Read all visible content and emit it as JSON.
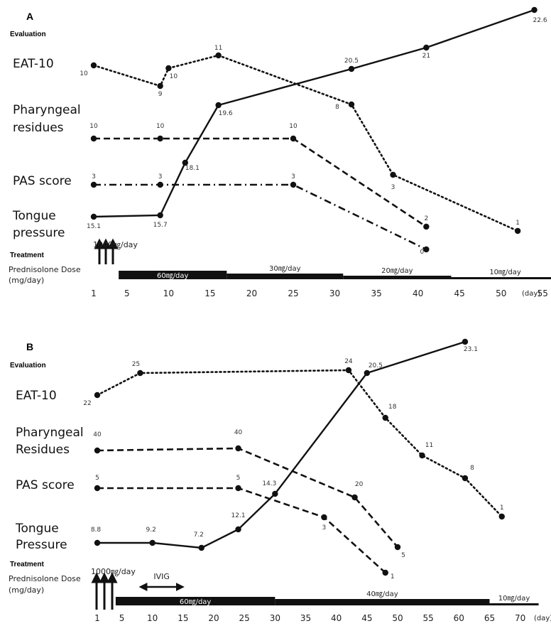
{
  "chart_data": [
    {
      "type": "line",
      "panel": "A",
      "evaluation_heading": "Evaluation",
      "treatment_heading": "Treatment",
      "row_labels": {
        "eat10": [
          "EAT-10"
        ],
        "residues": [
          "Pharyngeal",
          "residues"
        ],
        "pas": [
          "PAS score"
        ],
        "tongue": [
          "Tongue",
          "pressure"
        ]
      },
      "dose_label": [
        "Prednisolone Dose",
        "(mg/day)"
      ],
      "x_axis": {
        "ticks": [
          1,
          5,
          10,
          15,
          20,
          25,
          30,
          35,
          40,
          45,
          50,
          55
        ],
        "unit": "(day)",
        "range": [
          1,
          58
        ]
      },
      "series": [
        {
          "name": "EAT-10",
          "style": "dotted",
          "points": [
            [
              1,
              10
            ],
            [
              9,
              9
            ],
            [
              10,
              10
            ],
            [
              16,
              11
            ],
            [
              32,
              8
            ],
            [
              37,
              3
            ],
            [
              52,
              1
            ]
          ],
          "labels": [
            "10",
            "9",
            "10",
            "11",
            "8",
            "3",
            "1"
          ]
        },
        {
          "name": "Pharyngeal residues",
          "style": "dashed",
          "points": [
            [
              1,
              10
            ],
            [
              9,
              10
            ],
            [
              25,
              10
            ],
            [
              41,
              2
            ]
          ],
          "labels": [
            "10",
            "10",
            "10",
            "2"
          ]
        },
        {
          "name": "PAS score",
          "style": "dashdot",
          "points": [
            [
              1,
              3
            ],
            [
              9,
              3
            ],
            [
              25,
              3
            ],
            [
              41,
              0
            ]
          ],
          "labels": [
            "3",
            "3",
            "3",
            "0"
          ]
        },
        {
          "name": "Tongue pressure",
          "style": "solid",
          "points": [
            [
              1,
              15.1
            ],
            [
              9,
              15.7
            ],
            [
              12,
              18.1
            ],
            [
              16,
              19.6
            ],
            [
              32,
              20.5
            ],
            [
              41,
              21
            ],
            [
              54,
              22.6
            ]
          ],
          "labels": [
            "15.1",
            "15.7",
            "18.1",
            "19.6",
            "20.5",
            "21",
            "22.6"
          ]
        }
      ],
      "treatment": {
        "pulses": {
          "label": "1000㎎/day",
          "days": [
            1,
            2,
            3
          ]
        },
        "doses": [
          {
            "label": "60㎎/day",
            "from": 4,
            "to": 17
          },
          {
            "label": "30㎎/day",
            "from": 17,
            "to": 31
          },
          {
            "label": "20㎎/day",
            "from": 31,
            "to": 44
          },
          {
            "label": "10㎎/day",
            "from": 44,
            "to": 57
          }
        ]
      }
    },
    {
      "type": "line",
      "panel": "B",
      "evaluation_heading": "Evaluation",
      "treatment_heading": "Treatment",
      "row_labels": {
        "eat10": [
          "EAT-10"
        ],
        "residues": [
          "Pharyngeal",
          "Residues"
        ],
        "pas": [
          "PAS score"
        ],
        "tongue": [
          "Tongue",
          "Pressure"
        ]
      },
      "dose_label": [
        "Prednisolone Dose",
        "(mg/day)"
      ],
      "x_axis": {
        "ticks": [
          1,
          5,
          10,
          15,
          20,
          25,
          30,
          35,
          40,
          45,
          50,
          55,
          60,
          65,
          70
        ],
        "unit": "(day)",
        "range": [
          1,
          73
        ]
      },
      "series": [
        {
          "name": "EAT-10",
          "style": "dotted",
          "points": [
            [
              1,
              22
            ],
            [
              8,
              25
            ],
            [
              42,
              24
            ],
            [
              48,
              18
            ],
            [
              54,
              11
            ],
            [
              61,
              8
            ],
            [
              67,
              1
            ]
          ],
          "labels": [
            "22",
            "25",
            "24",
            "18",
            "11",
            "8",
            "1"
          ]
        },
        {
          "name": "Pharyngeal Residues",
          "style": "dashed",
          "points": [
            [
              1,
              40
            ],
            [
              24,
              40
            ],
            [
              43,
              20
            ],
            [
              50,
              5
            ]
          ],
          "labels": [
            "40",
            "40",
            "20",
            "5"
          ]
        },
        {
          "name": "PAS score",
          "style": "dashed",
          "points": [
            [
              1,
              5
            ],
            [
              24,
              5
            ],
            [
              38,
              3
            ],
            [
              48,
              1
            ]
          ],
          "labels": [
            "5",
            "5",
            "3",
            "1"
          ]
        },
        {
          "name": "Tongue Pressure",
          "style": "solid",
          "points": [
            [
              1,
              8.8
            ],
            [
              10,
              9.2
            ],
            [
              18,
              7.2
            ],
            [
              24,
              12.1
            ],
            [
              30,
              14.3
            ],
            [
              45,
              20.5
            ],
            [
              61,
              23.1
            ]
          ],
          "labels": [
            "8.8",
            "9.2",
            "7.2",
            "12.1",
            "14.3",
            "20.5",
            "23.1"
          ]
        }
      ],
      "treatment": {
        "pulses": {
          "label": "1000㎎/day",
          "days": [
            1,
            2,
            3
          ]
        },
        "ivig": {
          "label": "IVIG",
          "from": 8,
          "to": 15
        },
        "doses": [
          {
            "label": "60㎎/day",
            "from": 4,
            "to": 30
          },
          {
            "label": "40㎎/day",
            "from": 30,
            "to": 65
          },
          {
            "label": "10㎎/day",
            "from": 65,
            "to": 73
          }
        ]
      }
    }
  ]
}
